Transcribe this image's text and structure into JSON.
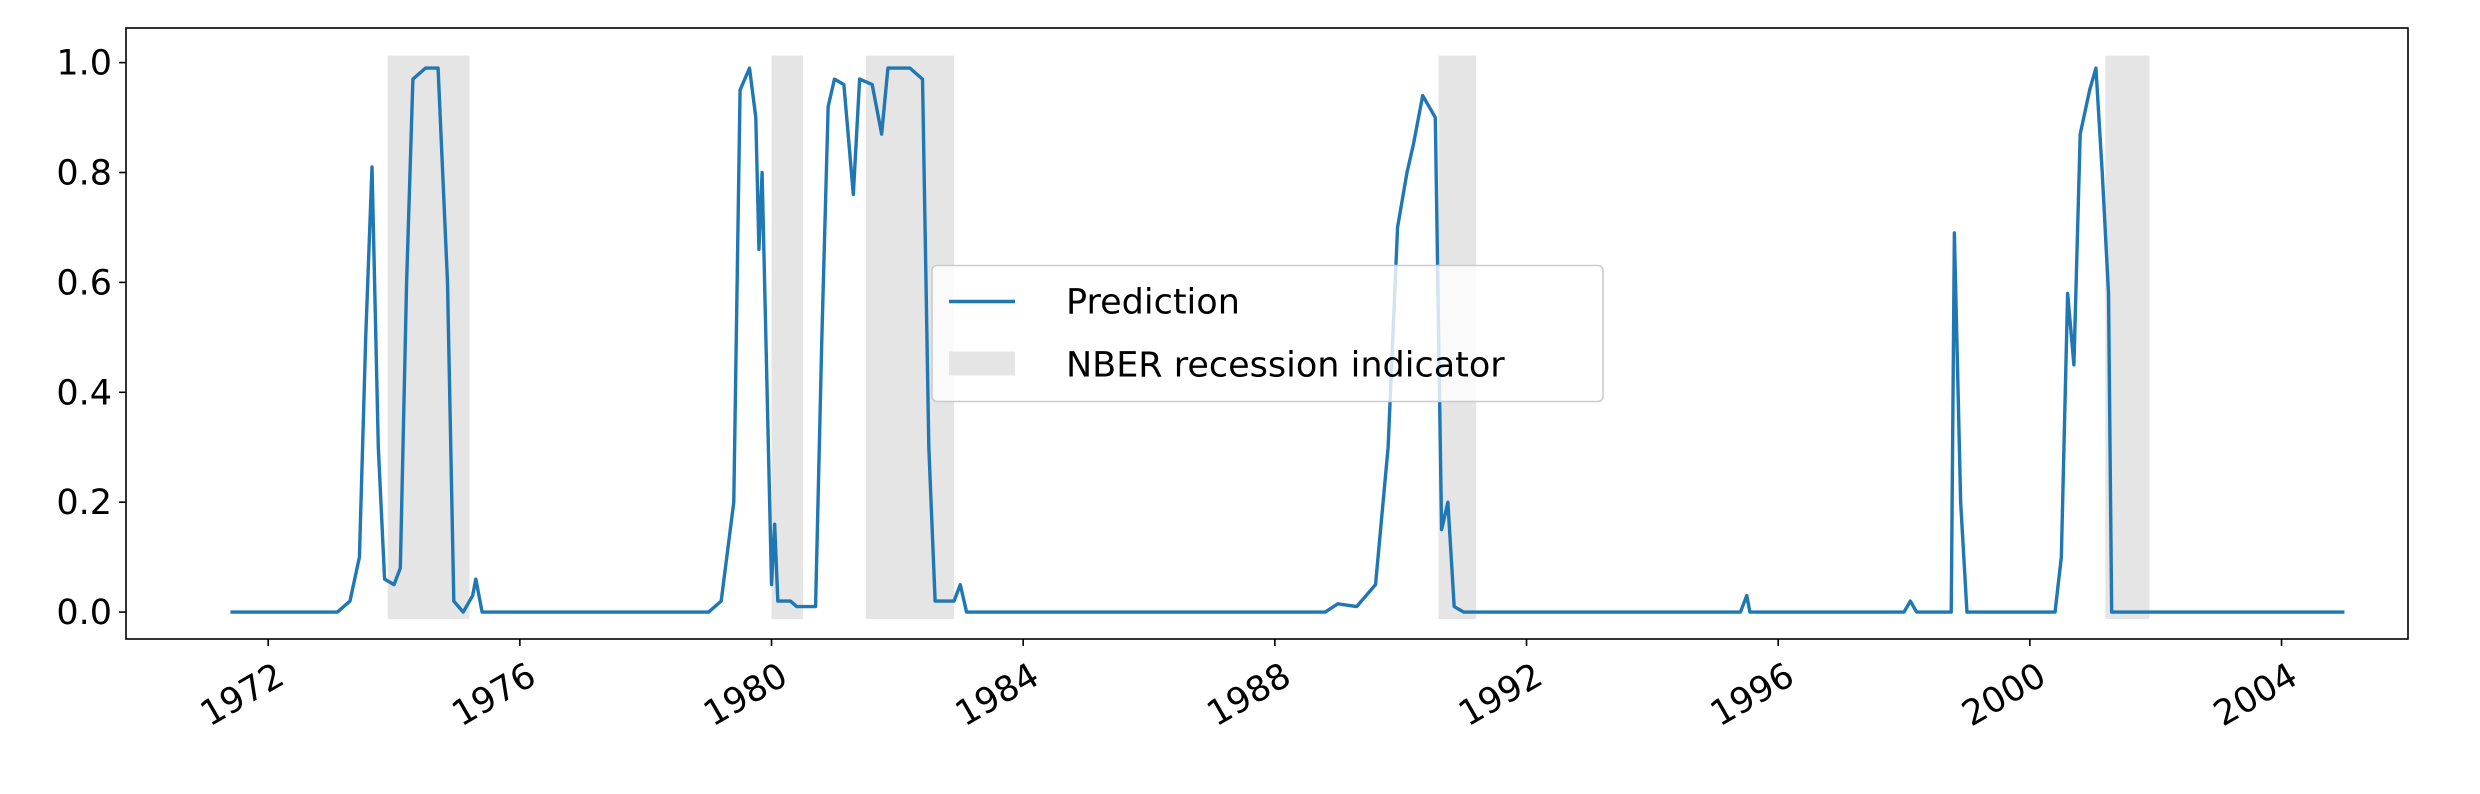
{
  "chart_data": {
    "type": "line",
    "series": [
      {
        "name": "Prediction",
        "color": "#1f77b4",
        "x": [
          1971.4,
          1973.1,
          1973.3,
          1973.45,
          1973.55,
          1973.65,
          1973.75,
          1973.85,
          1974.0,
          1974.1,
          1974.2,
          1974.3,
          1974.5,
          1974.7,
          1974.85,
          1974.95,
          1975.1,
          1975.25,
          1975.3,
          1975.4,
          1979.0,
          1979.2,
          1979.4,
          1979.5,
          1979.65,
          1979.75,
          1979.8,
          1979.85,
          1979.95,
          1980.0,
          1980.05,
          1980.1,
          1980.3,
          1980.4,
          1980.7,
          1980.8,
          1980.9,
          1981.0,
          1981.15,
          1981.3,
          1981.4,
          1981.6,
          1981.75,
          1981.85,
          1982.2,
          1982.4,
          1982.5,
          1982.6,
          1982.9,
          1983.0,
          1983.1,
          1988.8,
          1989.0,
          1989.3,
          1989.6,
          1989.8,
          1989.95,
          1990.1,
          1990.2,
          1990.35,
          1990.55,
          1990.65,
          1990.75,
          1990.85,
          1991.0,
          1995.4,
          1995.5,
          1995.55,
          1998.0,
          1998.1,
          1998.2,
          1998.75,
          1998.8,
          1998.9,
          1999.0,
          2000.4,
          2000.5,
          2000.6,
          2000.7,
          2000.8,
          2000.95,
          2001.05,
          2001.15,
          2001.25,
          2001.3,
          2005.0
        ],
        "values": [
          0,
          0,
          0.02,
          0.1,
          0.5,
          0.81,
          0.3,
          0.06,
          0.05,
          0.08,
          0.6,
          0.97,
          0.99,
          0.99,
          0.6,
          0.02,
          0,
          0.03,
          0.06,
          0,
          0,
          0.02,
          0.2,
          0.95,
          0.99,
          0.9,
          0.66,
          0.8,
          0.3,
          0.05,
          0.16,
          0.02,
          0.02,
          0.01,
          0.01,
          0.5,
          0.92,
          0.97,
          0.96,
          0.76,
          0.97,
          0.96,
          0.87,
          0.99,
          0.99,
          0.97,
          0.3,
          0.02,
          0.02,
          0.05,
          0,
          0,
          0.015,
          0.01,
          0.05,
          0.3,
          0.7,
          0.8,
          0.85,
          0.94,
          0.9,
          0.15,
          0.2,
          0.01,
          0,
          0,
          0.03,
          0,
          0,
          0.02,
          0,
          0,
          0.69,
          0.2,
          0,
          0,
          0.1,
          0.58,
          0.45,
          0.87,
          0.95,
          0.99,
          0.8,
          0.58,
          0,
          0
        ]
      }
    ],
    "shaded_regions": {
      "name": "NBER recession indicator",
      "color": "#e5e5e5",
      "spans": [
        [
          1973.9,
          1975.2
        ],
        [
          1980.0,
          1980.5
        ],
        [
          1981.5,
          1982.9
        ],
        [
          1990.6,
          1991.2
        ],
        [
          2001.2,
          2001.9
        ]
      ]
    },
    "xlim": [
      1969.74,
      2006.01
    ],
    "xticks": [
      1972,
      1976,
      1980,
      1984,
      1988,
      1992,
      1996,
      2000,
      2004
    ],
    "ylim": [
      -0.049,
      1.063
    ],
    "yticks": [
      {
        "value": 0,
        "label": "0.0"
      },
      {
        "value": 0.2,
        "label": "0.2"
      },
      {
        "value": 0.4,
        "label": "0.4"
      },
      {
        "value": 0.6,
        "label": "0.6"
      },
      {
        "value": 0.8,
        "label": "0.8"
      },
      {
        "value": 1.0,
        "label": "1.0"
      }
    ],
    "legend": "center",
    "grid": false
  }
}
